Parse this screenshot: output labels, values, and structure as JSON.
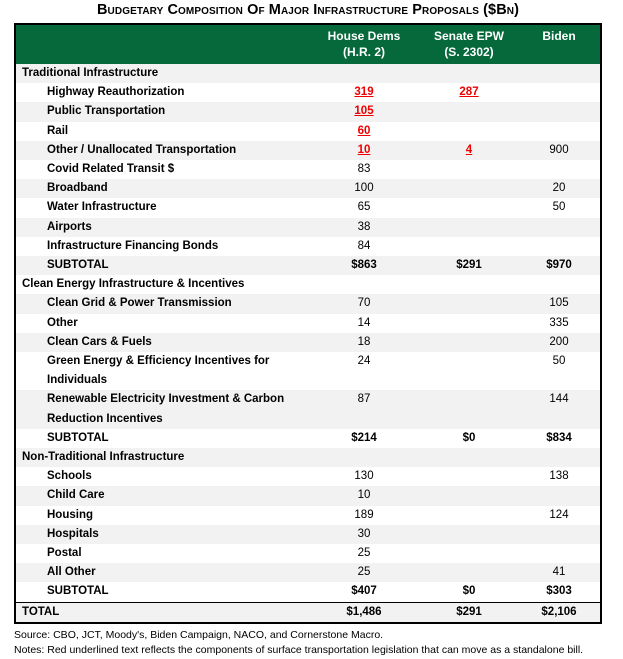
{
  "colors": {
    "header_green": "#05693B",
    "stripe": "#F2F2F2",
    "red_note": "#EE0000"
  },
  "chart_data": {
    "type": "table",
    "title": "Budgetary Composition Of Major Infrastructure Proposals ($Bn)",
    "columns": [
      {
        "line1": "House Dems",
        "line2": "(H.R. 2)"
      },
      {
        "line1": "Senate EPW",
        "line2": "(S. 2302)"
      },
      {
        "line1": "Biden",
        "line2": ""
      }
    ],
    "rows": [
      {
        "type": "section",
        "label": "Traditional Infrastructure",
        "values": [
          "",
          "",
          ""
        ]
      },
      {
        "type": "item",
        "label": "Highway Reauthorization",
        "values": [
          "319",
          "287",
          ""
        ],
        "red": [
          true,
          true,
          false
        ]
      },
      {
        "type": "item",
        "label": "Public Transportation",
        "values": [
          "105",
          "",
          ""
        ],
        "red": [
          true,
          false,
          false
        ]
      },
      {
        "type": "item",
        "label": "Rail",
        "values": [
          "60",
          "",
          ""
        ],
        "red": [
          true,
          false,
          false
        ]
      },
      {
        "type": "item",
        "label": "Other / Unallocated Transportation",
        "values": [
          "10",
          "4",
          "900"
        ],
        "red": [
          true,
          true,
          false
        ]
      },
      {
        "type": "item",
        "label": "Covid Related Transit $",
        "values": [
          "83",
          "",
          ""
        ]
      },
      {
        "type": "item",
        "label": "Broadband",
        "values": [
          "100",
          "",
          "20"
        ]
      },
      {
        "type": "item",
        "label": "Water Infrastructure",
        "values": [
          "65",
          "",
          "50"
        ]
      },
      {
        "type": "item",
        "label": "Airports",
        "values": [
          "38",
          "",
          ""
        ]
      },
      {
        "type": "item",
        "label": "Infrastructure Financing Bonds",
        "values": [
          "84",
          "",
          ""
        ]
      },
      {
        "type": "subtotal",
        "label": "SUBTOTAL",
        "values": [
          "$863",
          "$291",
          "$970"
        ]
      },
      {
        "type": "section",
        "label": "Clean Energy Infrastructure & Incentives",
        "values": [
          "",
          "",
          ""
        ]
      },
      {
        "type": "item",
        "label": "Clean Grid & Power Transmission",
        "values": [
          "70",
          "",
          "105"
        ]
      },
      {
        "type": "item",
        "label": "Other",
        "values": [
          "14",
          "",
          "335"
        ]
      },
      {
        "type": "item",
        "label": "Clean Cars & Fuels",
        "values": [
          "18",
          "",
          "200"
        ]
      },
      {
        "type": "item",
        "label": "Green Energy & Efficiency Incentives for Individuals",
        "values": [
          "24",
          "",
          "50"
        ]
      },
      {
        "type": "item",
        "label": "Renewable Electricity Investment & Carbon Reduction Incentives",
        "values": [
          "87",
          "",
          "144"
        ]
      },
      {
        "type": "subtotal",
        "label": "SUBTOTAL",
        "values": [
          "$214",
          "$0",
          "$834"
        ]
      },
      {
        "type": "section",
        "label": "Non-Traditional Infrastructure",
        "values": [
          "",
          "",
          ""
        ]
      },
      {
        "type": "item",
        "label": "Schools",
        "values": [
          "130",
          "",
          "138"
        ]
      },
      {
        "type": "item",
        "label": "Child Care",
        "values": [
          "10",
          "",
          ""
        ]
      },
      {
        "type": "item",
        "label": "Housing",
        "values": [
          "189",
          "",
          "124"
        ]
      },
      {
        "type": "item",
        "label": "Hospitals",
        "values": [
          "30",
          "",
          ""
        ]
      },
      {
        "type": "item",
        "label": "Postal",
        "values": [
          "25",
          "",
          ""
        ]
      },
      {
        "type": "item",
        "label": "All Other",
        "values": [
          "25",
          "",
          "41"
        ]
      },
      {
        "type": "subtotal",
        "label": "SUBTOTAL",
        "values": [
          "$407",
          "$0",
          "$303"
        ]
      },
      {
        "type": "total",
        "label": "TOTAL",
        "values": [
          "$1,486",
          "$291",
          "$2,106"
        ]
      }
    ],
    "source": "Source: CBO, JCT, Moody's, Biden Campaign, NACO, and Cornerstone Macro.",
    "notes": "Notes: Red underlined text reflects the components of surface transportation legislation that can move as a standalone bill."
  }
}
